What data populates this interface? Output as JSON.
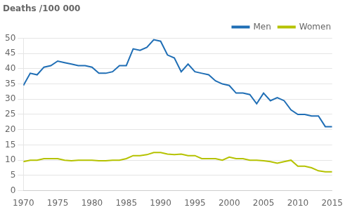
{
  "chart_data": {
    "type": "line",
    "title": "Deaths /100 000",
    "x": [
      1970,
      1971,
      1972,
      1973,
      1974,
      1975,
      1976,
      1977,
      1978,
      1979,
      1980,
      1981,
      1982,
      1983,
      1984,
      1985,
      1986,
      1987,
      1988,
      1989,
      1990,
      1991,
      1992,
      1993,
      1994,
      1995,
      1996,
      1997,
      1998,
      1999,
      2000,
      2001,
      2002,
      2003,
      2004,
      2005,
      2006,
      2007,
      2008,
      2009,
      2010,
      2011,
      2012,
      2013,
      2014,
      2015
    ],
    "series": [
      {
        "name": "Men",
        "color": "#1f6eb5",
        "values": [
          34.5,
          38.5,
          38.0,
          40.5,
          41.0,
          42.5,
          42.0,
          41.5,
          41.0,
          41.0,
          40.5,
          38.5,
          38.5,
          39.0,
          41.0,
          41.0,
          46.5,
          46.0,
          47.0,
          49.5,
          49.0,
          44.5,
          43.5,
          39.0,
          41.5,
          39.0,
          38.5,
          38.0,
          36.0,
          35.0,
          34.5,
          32.0,
          32.0,
          31.5,
          28.5,
          32.0,
          29.5,
          30.5,
          29.5,
          26.5,
          25.0,
          25.0,
          24.5,
          24.5,
          21.0,
          21.0
        ]
      },
      {
        "name": "Women",
        "color": "#b5c200",
        "values": [
          9.5,
          10.0,
          10.0,
          10.5,
          10.5,
          10.5,
          10.0,
          9.8,
          10.0,
          10.0,
          10.0,
          9.8,
          9.8,
          10.0,
          10.0,
          10.5,
          11.5,
          11.5,
          11.8,
          12.5,
          12.5,
          12.0,
          11.8,
          12.0,
          11.5,
          11.5,
          10.5,
          10.5,
          10.5,
          10.0,
          11.0,
          10.5,
          10.5,
          10.0,
          10.0,
          9.8,
          9.5,
          9.0,
          9.5,
          10.0,
          8.0,
          8.0,
          7.5,
          6.5,
          6.2,
          6.2
        ]
      }
    ],
    "xlim": [
      1970,
      2015
    ],
    "ylim": [
      0,
      50
    ],
    "xticks": [
      1970,
      1975,
      1980,
      1985,
      1990,
      1995,
      2000,
      2005,
      2010,
      2015
    ],
    "yticks": [
      0,
      5,
      10,
      15,
      20,
      25,
      30,
      35,
      40,
      45,
      50
    ],
    "grid": "y",
    "legend": "upper right"
  }
}
